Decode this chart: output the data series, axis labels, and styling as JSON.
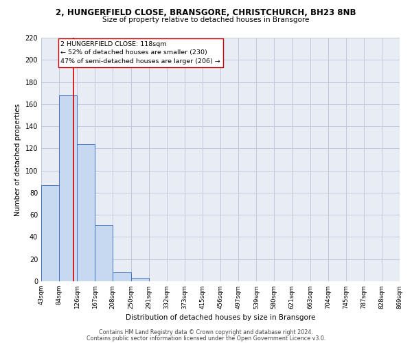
{
  "title_line1": "2, HUNGERFIELD CLOSE, BRANSGORE, CHRISTCHURCH, BH23 8NB",
  "title_line2": "Size of property relative to detached houses in Bransgore",
  "xlabel": "Distribution of detached houses by size in Bransgore",
  "ylabel": "Number of detached properties",
  "bin_edges": [
    43,
    84,
    126,
    167,
    208,
    250,
    291,
    332,
    373,
    415,
    456,
    497,
    539,
    580,
    621,
    663,
    704,
    745,
    787,
    828,
    869
  ],
  "bar_heights": [
    87,
    168,
    124,
    51,
    8,
    3,
    0,
    0,
    0,
    0,
    0,
    0,
    0,
    0,
    0,
    0,
    0,
    0,
    0,
    0
  ],
  "bar_color": "#c6d9f0",
  "bar_edge_color": "#4472c4",
  "property_size": 118,
  "vline_color": "#cc0000",
  "annotation_text_line1": "2 HUNGERFIELD CLOSE: 118sqm",
  "annotation_text_line2": "← 52% of detached houses are smaller (230)",
  "annotation_text_line3": "47% of semi-detached houses are larger (206) →",
  "annotation_box_color": "#ffffff",
  "annotation_box_edge": "#cc0000",
  "ylim": [
    0,
    220
  ],
  "yticks": [
    0,
    20,
    40,
    60,
    80,
    100,
    120,
    140,
    160,
    180,
    200,
    220
  ],
  "grid_color": "#c0c8d8",
  "background_color": "#e8edf5",
  "footer_line1": "Contains HM Land Registry data © Crown copyright and database right 2024.",
  "footer_line2": "Contains public sector information licensed under the Open Government Licence v3.0."
}
